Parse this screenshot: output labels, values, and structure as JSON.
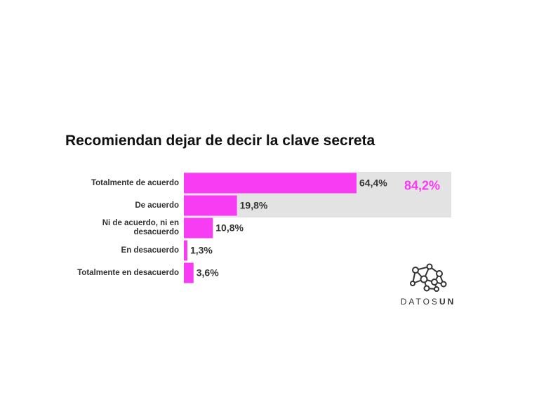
{
  "chart_data": {
    "type": "bar",
    "orientation": "horizontal",
    "title": "Recomiendan dejar de decir la clave secreta",
    "categories": [
      "Totalmente de acuerdo",
      "De acuerdo",
      "Ni de acuerdo, ni en desacuerdo",
      "En desacuerdo",
      "Totalmente en desacuerdo"
    ],
    "values": [
      64.4,
      19.8,
      10.8,
      1.3,
      3.6
    ],
    "value_labels": [
      "64,4%",
      "19,8%",
      "10,8%",
      "1,3%",
      "3,6%"
    ],
    "color": "#f73cf4",
    "xlim": [
      0,
      100
    ],
    "annotation": {
      "text": "84,2%",
      "color": "#f73cf4"
    }
  },
  "logo": {
    "prefix": "DATOS",
    "suffix": "UN"
  }
}
